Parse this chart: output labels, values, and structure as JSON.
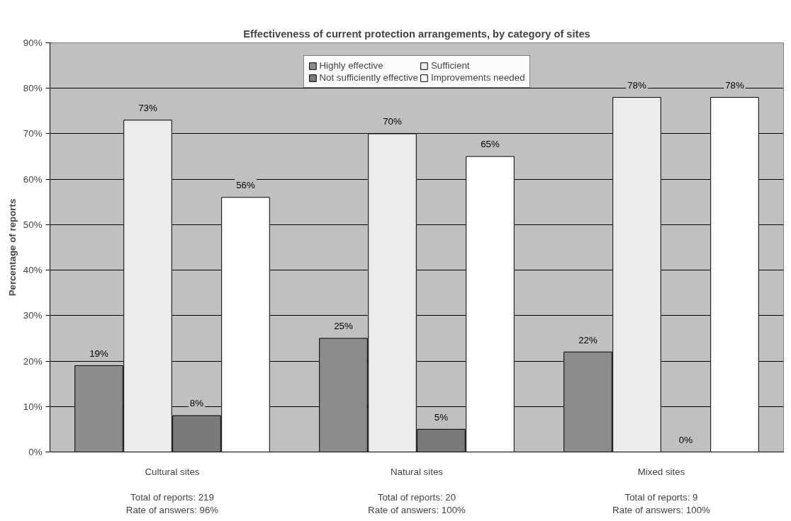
{
  "chart_data": {
    "type": "bar",
    "title": "Effectiveness of current protection arrangements, by category of sites",
    "ylabel": "Percentage of reports",
    "categories": [
      "Cultural sites\n\nTotal of reports: 219\nRate of answers: 96%",
      "Natural sites\n\nTotal of reports: 20\nRate of answers: 100%",
      "Mixed sites\n\nTotal of reports: 9\nRate of answers: 100%"
    ],
    "series": [
      {
        "name": "Highly effective",
        "color": "#8c8c8c",
        "values": [
          19,
          25,
          22
        ],
        "value_labels": [
          "19%",
          "25%",
          "22%"
        ]
      },
      {
        "name": "Sufficient",
        "color": "#ececec",
        "values": [
          73,
          70,
          78
        ],
        "value_labels": [
          "73%",
          "70%",
          "78%"
        ]
      },
      {
        "name": "Not sufficiently effective",
        "color": "#7a7a7a",
        "values": [
          8,
          5,
          0
        ],
        "value_labels": [
          "8%",
          "5%",
          "0%"
        ]
      },
      {
        "name": "Improvements needed",
        "color": "#ffffff",
        "values": [
          56,
          65,
          78
        ],
        "value_labels": [
          "56%",
          "65%",
          "78%"
        ]
      }
    ],
    "ylim": [
      0,
      90
    ],
    "yticks": [
      {
        "value": 0,
        "label": "0%"
      },
      {
        "value": 10,
        "label": "10%"
      },
      {
        "value": 20,
        "label": "20%"
      },
      {
        "value": 30,
        "label": "30%"
      },
      {
        "value": 40,
        "label": "40%"
      },
      {
        "value": 50,
        "label": "50%"
      },
      {
        "value": 60,
        "label": "60%"
      },
      {
        "value": 70,
        "label": "70%"
      },
      {
        "value": 80,
        "label": "80%"
      },
      {
        "value": 90,
        "label": "90%"
      }
    ],
    "grid": "y",
    "legend": "top"
  }
}
